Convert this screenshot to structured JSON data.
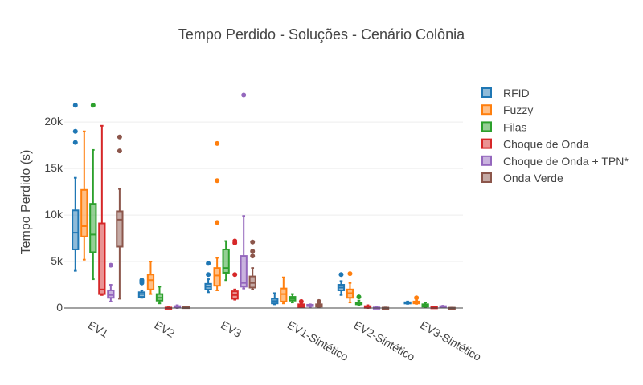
{
  "chart_data": {
    "type": "box",
    "title": "Tempo Perdido - Soluções - Cenário Colônia",
    "xlabel": "",
    "ylabel": "Tempo Perdido (s)",
    "ylim": [
      0,
      24500
    ],
    "yticks": [
      0,
      5000,
      10000,
      15000,
      20000
    ],
    "ytick_labels": [
      "0",
      "5k",
      "10k",
      "15k",
      "20k"
    ],
    "grid": true,
    "legend_position": "right",
    "categories": [
      "EV1",
      "EV2",
      "EV3",
      "EV1-Sintético",
      "EV2-Sintético",
      "EV3-Sintético"
    ],
    "series": [
      {
        "name": "RFID",
        "color": "#1f77b4",
        "boxes": [
          {
            "min": 4000,
            "q1": 6300,
            "median": 8100,
            "q3": 10500,
            "max": 14000,
            "outliers": [
              17800,
              19000,
              21800
            ]
          },
          {
            "min": 1100,
            "q1": 1200,
            "median": 1500,
            "q3": 1700,
            "max": 1900,
            "outliers": [
              2700,
              2900,
              3000
            ]
          },
          {
            "min": 1700,
            "q1": 2000,
            "median": 2300,
            "q3": 2600,
            "max": 3100,
            "outliers": [
              3600,
              4800
            ]
          },
          {
            "min": 400,
            "q1": 500,
            "median": 750,
            "q3": 1000,
            "max": 1600,
            "outliers": []
          },
          {
            "min": 1400,
            "q1": 1900,
            "median": 2200,
            "q3": 2500,
            "max": 2900,
            "outliers": [
              3600
            ]
          },
          {
            "min": 450,
            "q1": 500,
            "median": 560,
            "q3": 620,
            "max": 700,
            "outliers": []
          }
        ]
      },
      {
        "name": "Fuzzy",
        "color": "#ff7f0e",
        "boxes": [
          {
            "min": 5200,
            "q1": 7700,
            "median": 8800,
            "q3": 12700,
            "max": 19000,
            "outliers": []
          },
          {
            "min": 1500,
            "q1": 2000,
            "median": 3000,
            "q3": 3600,
            "max": 5000,
            "outliers": []
          },
          {
            "min": 1900,
            "q1": 2400,
            "median": 3500,
            "q3": 4300,
            "max": 5400,
            "outliers": [
              9200,
              13700,
              17700
            ]
          },
          {
            "min": 500,
            "q1": 700,
            "median": 1500,
            "q3": 2100,
            "max": 3300,
            "outliers": []
          },
          {
            "min": 600,
            "q1": 1100,
            "median": 1600,
            "q3": 2000,
            "max": 2700,
            "outliers": [
              3700
            ]
          },
          {
            "min": 450,
            "q1": 500,
            "median": 600,
            "q3": 700,
            "max": 800,
            "outliers": [
              1100
            ]
          }
        ]
      },
      {
        "name": "Filas",
        "color": "#2ca02c",
        "boxes": [
          {
            "min": 3100,
            "q1": 6000,
            "median": 7900,
            "q3": 11200,
            "max": 17000,
            "outliers": [
              21800
            ]
          },
          {
            "min": 500,
            "q1": 800,
            "median": 1100,
            "q3": 1500,
            "max": 2300,
            "outliers": []
          },
          {
            "min": 3000,
            "q1": 3800,
            "median": 4300,
            "q3": 6300,
            "max": 7200,
            "outliers": []
          },
          {
            "min": 600,
            "q1": 800,
            "median": 1000,
            "q3": 1200,
            "max": 1500,
            "outliers": []
          },
          {
            "min": 300,
            "q1": 400,
            "median": 500,
            "q3": 600,
            "max": 800,
            "outliers": [
              1200
            ]
          },
          {
            "min": 100,
            "q1": 150,
            "median": 250,
            "q3": 400,
            "max": 600,
            "outliers": []
          }
        ]
      },
      {
        "name": "Choque de Onda",
        "color": "#d62728",
        "boxes": [
          {
            "min": 1400,
            "q1": 1500,
            "median": 2000,
            "q3": 9100,
            "max": 19600,
            "outliers": []
          },
          {
            "min": 0,
            "q1": 0,
            "median": 20,
            "q3": 50,
            "max": 80,
            "outliers": []
          },
          {
            "min": 900,
            "q1": 1000,
            "median": 1400,
            "q3": 1800,
            "max": 2000,
            "outliers": [
              3600,
              7000,
              7200
            ]
          },
          {
            "min": 50,
            "q1": 100,
            "median": 250,
            "q3": 400,
            "max": 500,
            "outliers": [
              700
            ]
          },
          {
            "min": 0,
            "q1": 20,
            "median": 100,
            "q3": 200,
            "max": 300,
            "outliers": []
          },
          {
            "min": 0,
            "q1": 10,
            "median": 50,
            "q3": 100,
            "max": 150,
            "outliers": []
          }
        ]
      },
      {
        "name": "Choque de Onda + TPN*",
        "color": "#9467bd",
        "boxes": [
          {
            "min": 700,
            "q1": 1100,
            "median": 1400,
            "q3": 1900,
            "max": 2500,
            "outliers": [
              4600
            ]
          },
          {
            "min": 0,
            "q1": 50,
            "median": 100,
            "q3": 200,
            "max": 300,
            "outliers": []
          },
          {
            "min": 2100,
            "q1": 2300,
            "median": 2700,
            "q3": 5600,
            "max": 9900,
            "outliers": [
              22900
            ]
          },
          {
            "min": 100,
            "q1": 200,
            "median": 300,
            "q3": 350,
            "max": 400,
            "outliers": []
          },
          {
            "min": 0,
            "q1": 10,
            "median": 30,
            "q3": 60,
            "max": 80,
            "outliers": []
          },
          {
            "min": 50,
            "q1": 100,
            "median": 150,
            "q3": 200,
            "max": 250,
            "outliers": []
          }
        ]
      },
      {
        "name": "Onda Verde",
        "color": "#8c564b",
        "boxes": [
          {
            "min": 1000,
            "q1": 6600,
            "median": 9500,
            "q3": 10400,
            "max": 12800,
            "outliers": [
              16900,
              18400
            ]
          },
          {
            "min": 20,
            "q1": 40,
            "median": 80,
            "q3": 120,
            "max": 160,
            "outliers": []
          },
          {
            "min": 2000,
            "q1": 2200,
            "median": 2700,
            "q3": 3400,
            "max": 4300,
            "outliers": [
              5600,
              6100,
              7100
            ]
          },
          {
            "min": 100,
            "q1": 150,
            "median": 300,
            "q3": 400,
            "max": 500,
            "outliers": [
              700
            ]
          },
          {
            "min": 0,
            "q1": 10,
            "median": 20,
            "q3": 40,
            "max": 60,
            "outliers": []
          },
          {
            "min": 0,
            "q1": 10,
            "median": 20,
            "q3": 30,
            "max": 40,
            "outliers": []
          }
        ]
      }
    ]
  }
}
